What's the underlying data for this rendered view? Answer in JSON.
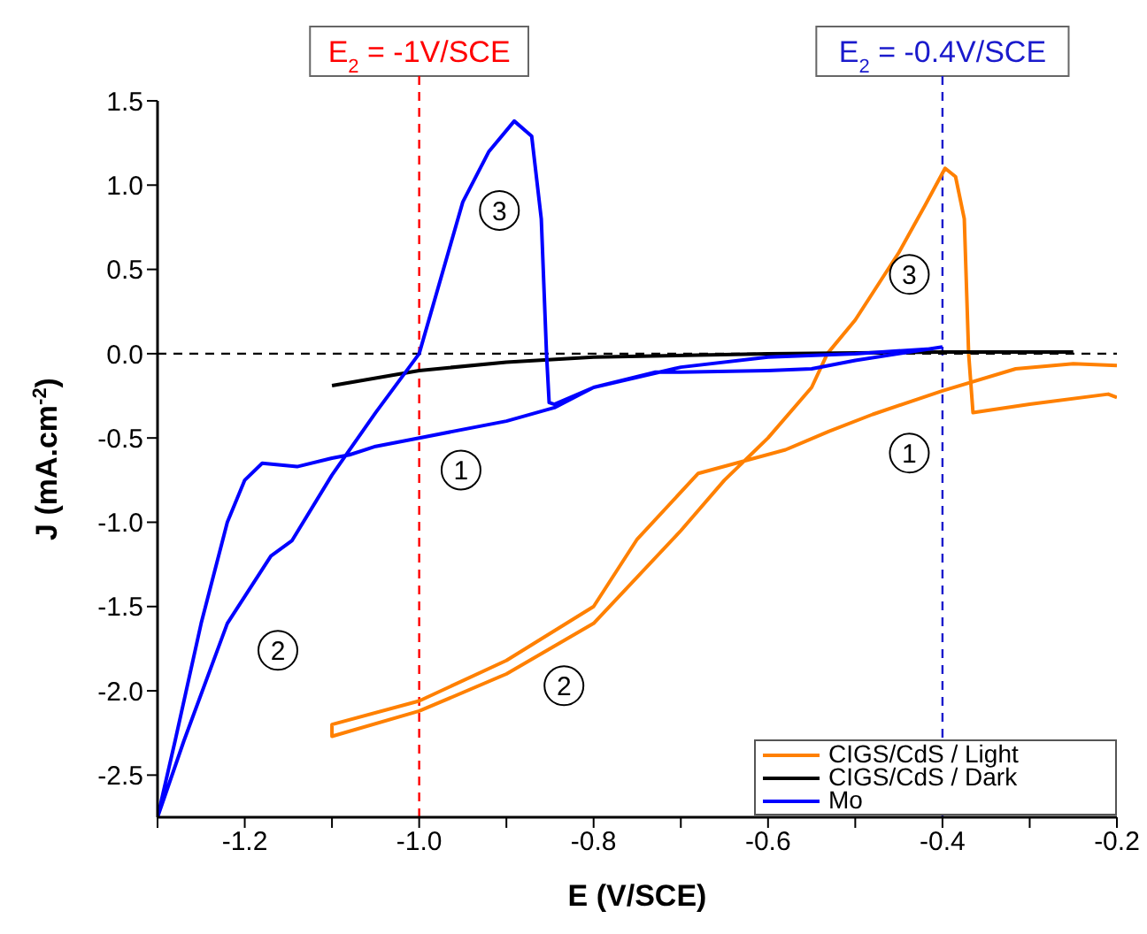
{
  "chart_data": {
    "type": "line",
    "xlabel": "E (V/SCE)",
    "ylabel": "J (mA.cm$^{-2}$)",
    "xlim": [
      -1.3,
      -0.2
    ],
    "ylim": [
      -2.75,
      1.5
    ],
    "xticks": [
      {
        "value": -1.3,
        "label": null
      },
      -1.2,
      {
        "value": -1.1,
        "label": null
      },
      {
        "value": -1,
        "label": "-1.0"
      },
      {
        "value": -0.9,
        "label": null
      },
      -0.8,
      {
        "value": -0.7,
        "label": null
      },
      -0.6,
      {
        "value": -0.5,
        "label": null
      },
      -0.4,
      {
        "value": -0.3,
        "label": null
      },
      -0.2
    ],
    "yticks": [
      {
        "value": -2.5,
        "label": "-2.5"
      },
      {
        "value": -2,
        "label": "-2.0"
      },
      -1.5,
      {
        "value": -1,
        "label": "-1.0"
      },
      -0.5,
      {
        "value": 0,
        "label": "0.0"
      },
      0.5,
      {
        "value": 1,
        "label": "1.0"
      },
      1.5
    ],
    "grid": false,
    "legend": "bottom right",
    "line_style": "solid",
    "series": [
      {
        "name": "CIGS/CdS / Light",
        "color": "#ff8000",
        "x": [
          -0.2,
          -0.25,
          -0.316,
          -0.4,
          -0.48,
          -0.53,
          -0.58,
          -0.68,
          -0.75,
          -0.8,
          -0.9,
          -1.0,
          -1.1,
          -1.1,
          -1.0,
          -0.9,
          -0.8,
          -0.7,
          -0.65,
          -0.6,
          -0.55,
          -0.532,
          -0.5,
          -0.45,
          -0.42,
          -0.397,
          -0.385,
          -0.375,
          -0.37,
          -0.365,
          -0.3,
          -0.21,
          -0.2
        ],
        "values": [
          -0.07,
          -0.06,
          -0.09,
          -0.22,
          -0.36,
          -0.46,
          -0.57,
          -0.71,
          -1.1,
          -1.5,
          -1.82,
          -2.06,
          -2.2,
          -2.27,
          -2.12,
          -1.9,
          -1.6,
          -1.05,
          -0.75,
          -0.5,
          -0.2,
          0,
          0.2,
          0.6,
          0.88,
          1.1,
          1.05,
          0.8,
          0,
          -0.35,
          -0.3,
          -0.24,
          -0.26
        ]
      },
      {
        "name": "CIGS/CdS / Dark",
        "color": "#000000",
        "x": [
          -1.1,
          -1.0,
          -0.9,
          -0.8,
          -0.6,
          -0.4,
          -0.25
        ],
        "values": [
          -0.19,
          -0.1,
          -0.05,
          -0.02,
          0,
          0.01,
          0.01
        ]
      },
      {
        "name": "Mo",
        "color": "#0000ff",
        "x": [
          -0.4,
          -0.45,
          -0.5,
          -0.55,
          -0.6,
          -0.7,
          -0.73,
          -0.8,
          -0.845,
          -0.9,
          -1.0,
          -1.05,
          -1.08,
          -1.1,
          -1.14,
          -1.18,
          -1.2,
          -1.22,
          -1.25,
          -1.28,
          -1.3,
          -1.27,
          -1.22,
          -1.17,
          -1.146,
          -1.1,
          -1.05,
          -1.0,
          -0.95,
          -0.92,
          -0.891,
          -0.871,
          -0.86,
          -0.854,
          -0.851,
          -0.845,
          -0.8,
          -0.7,
          -0.6,
          -0.5,
          -0.41
        ],
        "values": [
          0.04,
          0.0,
          -0.04,
          -0.09,
          -0.1,
          -0.11,
          -0.11,
          -0.2,
          -0.32,
          -0.4,
          -0.5,
          -0.55,
          -0.6,
          -0.62,
          -0.67,
          -0.65,
          -0.75,
          -1.0,
          -1.6,
          -2.3,
          -2.75,
          -2.3,
          -1.6,
          -1.2,
          -1.11,
          -0.72,
          -0.35,
          0.0,
          0.9,
          1.2,
          1.38,
          1.29,
          0.8,
          0.0,
          -0.29,
          -0.3,
          -0.2,
          -0.08,
          -0.02,
          0.0,
          0.03
        ]
      }
    ],
    "ref_lines": [
      {
        "axis": "x",
        "value": -1,
        "label": "E$_{2}$ = -1V/SCE",
        "color": "#ff0000",
        "line_style": "dashed"
      },
      {
        "axis": "x",
        "value": -0.4,
        "label": "E$_{2}$ = -0.4V/SCE",
        "color": "#1a1acc",
        "line_style": "dashed"
      },
      {
        "axis": "y",
        "value": 0,
        "color": "#000000",
        "line_style": "dashed"
      }
    ],
    "annotations": [
      {
        "text": "1",
        "x": -0.952,
        "y": -0.69
      },
      {
        "text": "2",
        "x": -1.162,
        "y": -1.76
      },
      {
        "text": "3",
        "x": -0.908,
        "y": 0.85
      },
      {
        "text": "1",
        "x": -0.438,
        "y": -0.59
      },
      {
        "text": "2",
        "x": -0.834,
        "y": -1.97
      },
      {
        "text": "3",
        "x": -0.438,
        "y": 0.47
      }
    ]
  }
}
